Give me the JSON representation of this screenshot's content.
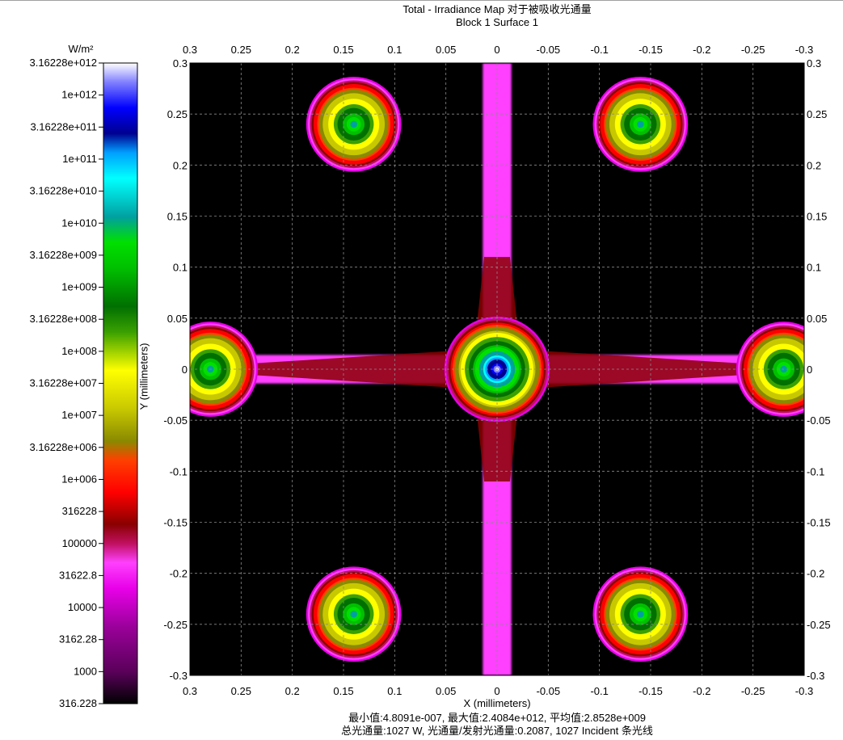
{
  "title": "Total - Irradiance Map 对于被吸收光通量",
  "subtitle": "Block 1 Surface 1",
  "footer": {
    "line1": "最小值:4.8091e-007, 最大值:2.4084e+012, 平均值:2.8528e+009",
    "line2": "总光通量:1027 W, 光通量/发射光通量:0.2087, 1027 Incident 条光线"
  },
  "colorbar": {
    "unit": "W/m²",
    "labels": [
      "3.16228e+012",
      "1e+012",
      "3.16228e+011",
      "1e+011",
      "3.16228e+010",
      "1e+010",
      "3.16228e+009",
      "1e+009",
      "3.16228e+008",
      "1e+008",
      "3.16228e+007",
      "1e+007",
      "3.16228e+006",
      "1e+006",
      "316228",
      "100000",
      "31622.8",
      "10000",
      "3162.28",
      "1000",
      "316.228"
    ],
    "stops": [
      {
        "level": 0.0,
        "color": "#000000"
      },
      {
        "level": 0.05,
        "color": "#5a005a"
      },
      {
        "level": 0.12,
        "color": "#9a009a"
      },
      {
        "level": 0.18,
        "color": "#e800e8"
      },
      {
        "level": 0.22,
        "color": "#ff40ff"
      },
      {
        "level": 0.25,
        "color": "#c01060"
      },
      {
        "level": 0.28,
        "color": "#8a0000"
      },
      {
        "level": 0.33,
        "color": "#ff0000"
      },
      {
        "level": 0.38,
        "color": "#ff4000"
      },
      {
        "level": 0.41,
        "color": "#8a8a00"
      },
      {
        "level": 0.46,
        "color": "#c8c800"
      },
      {
        "level": 0.52,
        "color": "#ffff00"
      },
      {
        "level": 0.58,
        "color": "#3aa000"
      },
      {
        "level": 0.62,
        "color": "#007000"
      },
      {
        "level": 0.68,
        "color": "#00c000"
      },
      {
        "level": 0.72,
        "color": "#00e000"
      },
      {
        "level": 0.76,
        "color": "#00a0a0"
      },
      {
        "level": 0.82,
        "color": "#00ffff"
      },
      {
        "level": 0.86,
        "color": "#00a0ff"
      },
      {
        "level": 0.89,
        "color": "#000090"
      },
      {
        "level": 0.93,
        "color": "#0000ff"
      },
      {
        "level": 0.97,
        "color": "#8080ff"
      },
      {
        "level": 1.0,
        "color": "#ffffff"
      }
    ]
  },
  "chart_data": {
    "type": "heatmap",
    "title": "Total - Irradiance Map 对于被吸收光通量",
    "subtitle": "Block 1 Surface 1",
    "xlabel": "X (millimeters)",
    "ylabel": "Y (millimeters)",
    "xlim": [
      0.3,
      -0.3
    ],
    "ylim": [
      -0.3,
      0.3
    ],
    "x_ticks": [
      0.3,
      0.25,
      0.2,
      0.15,
      0.1,
      0.05,
      0,
      -0.05,
      -0.1,
      -0.15,
      -0.2,
      -0.25,
      -0.3
    ],
    "x_tick_labels": [
      "0.3",
      "0.25",
      "0.2",
      "0.15",
      "0.1",
      "0.05",
      "0",
      "-0.05",
      "-0.1",
      "-0.15",
      "-0.2",
      "-0.25",
      "-0.3"
    ],
    "y_ticks": [
      0.3,
      0.25,
      0.2,
      0.15,
      0.1,
      0.05,
      0,
      -0.05,
      -0.1,
      -0.15,
      -0.2,
      -0.25,
      -0.3
    ],
    "y_tick_labels": [
      "0.3",
      "0.25",
      "0.2",
      "0.15",
      "0.1",
      "0.05",
      "0",
      "-0.05",
      "-0.1",
      "-0.15",
      "-0.2",
      "-0.25",
      "-0.3"
    ],
    "grid": true,
    "color_scale": "log",
    "colorbar_range_W_per_m2": [
      316.228,
      3162280000000.0
    ],
    "spots": [
      {
        "x": 0,
        "y": 0,
        "peak_level": 1.0,
        "radius_mm": 0.05
      },
      {
        "x": 0.14,
        "y": 0.24,
        "peak_level": 0.79,
        "radius_mm": 0.045
      },
      {
        "x": -0.14,
        "y": 0.24,
        "peak_level": 0.79,
        "radius_mm": 0.045
      },
      {
        "x": 0.14,
        "y": -0.24,
        "peak_level": 0.79,
        "radius_mm": 0.045
      },
      {
        "x": -0.14,
        "y": -0.24,
        "peak_level": 0.79,
        "radius_mm": 0.045
      },
      {
        "x": 0.28,
        "y": 0,
        "peak_level": 0.79,
        "radius_mm": 0.045
      },
      {
        "x": -0.28,
        "y": 0,
        "peak_level": 0.79,
        "radius_mm": 0.045
      }
    ],
    "cross_beams": [
      {
        "orientation": "vertical",
        "center_mm": 0,
        "half_width_mm": 0.014,
        "level": 0.22
      },
      {
        "orientation": "horizontal",
        "center_mm": 0,
        "half_width_mm": 0.014,
        "level": 0.22
      }
    ],
    "stats": {
      "min": 4.8091e-07,
      "max": 2408400000000.0,
      "mean": 2852800000.0,
      "total_flux_W": 1027,
      "flux_ratio": 0.2087,
      "incident_rays": 1027
    }
  }
}
